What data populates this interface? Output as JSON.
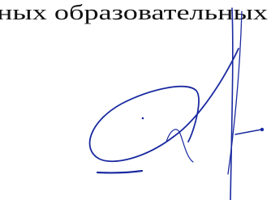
{
  "text": "ных образовательных"
}
